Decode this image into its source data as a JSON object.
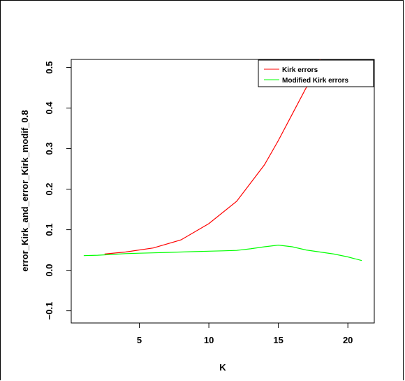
{
  "chart_data": {
    "type": "line",
    "title": "",
    "xlabel": "K",
    "ylabel": "error_Kirk_and_error_Kirk_modif_0.8",
    "xlim": [
      0.1,
      21.9
    ],
    "ylim": [
      -0.13,
      0.52
    ],
    "x_ticks": [
      5,
      10,
      15,
      20
    ],
    "y_ticks": [
      -0.1,
      0.0,
      0.1,
      0.2,
      0.3,
      0.4,
      0.5
    ],
    "x_tick_labels": [
      "5",
      "10",
      "15",
      "20"
    ],
    "y_tick_labels": [
      "−0.1",
      "0.0",
      "0.1",
      "0.2",
      "0.3",
      "0.4",
      "0.5"
    ],
    "grid": false,
    "legend_position": "top-right",
    "series": [
      {
        "name": "Kirk errors",
        "color": "#ff0000",
        "x": [
          2.5,
          4,
          6,
          8,
          10,
          12,
          14,
          15,
          16,
          17,
          18,
          18.5
        ],
        "y": [
          0.04,
          0.045,
          0.055,
          0.075,
          0.115,
          0.17,
          0.26,
          0.32,
          0.385,
          0.45,
          0.52,
          0.56
        ]
      },
      {
        "name": "Modified Kirk errors",
        "color": "#00ff00",
        "x": [
          1,
          2,
          3,
          4,
          5,
          6,
          7,
          8,
          9,
          10,
          11,
          12,
          13,
          14,
          15,
          16,
          17,
          18,
          19,
          20,
          21
        ],
        "y": [
          0.036,
          0.037,
          0.039,
          0.041,
          0.042,
          0.043,
          0.044,
          0.045,
          0.046,
          0.047,
          0.048,
          0.049,
          0.053,
          0.058,
          0.062,
          0.058,
          0.05,
          0.045,
          0.04,
          0.033,
          0.024
        ]
      }
    ]
  }
}
